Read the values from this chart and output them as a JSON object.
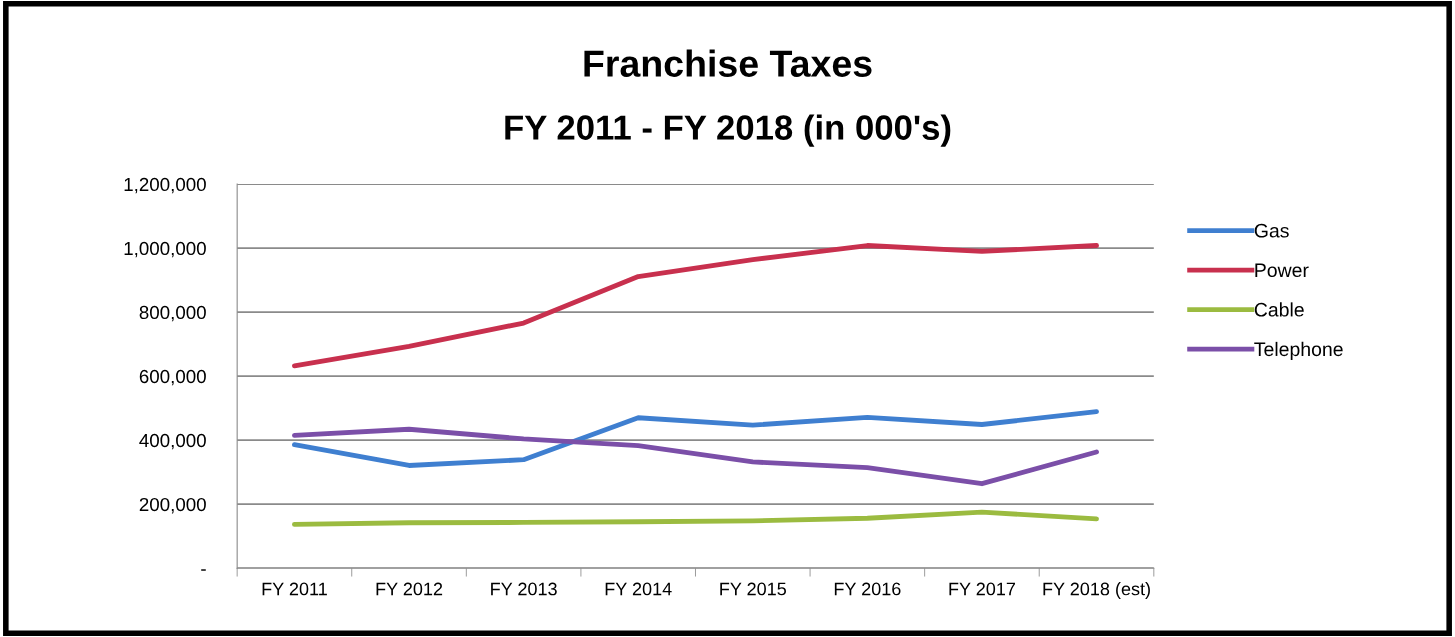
{
  "chart_data": {
    "type": "line",
    "title": "Franchise Taxes",
    "subtitle": "FY 2011 - FY 2018 (in 000's)",
    "categories": [
      "FY 2011",
      "FY 2012",
      "FY 2013",
      "FY 2014",
      "FY 2015",
      "FY 2016",
      "FY 2017",
      "FY 2018 (est)"
    ],
    "series": [
      {
        "name": "Gas",
        "color": "#3f7fd0",
        "values": [
          386000,
          321000,
          339000,
          470000,
          447000,
          471000,
          449000,
          489000
        ]
      },
      {
        "name": "Power",
        "color": "#c8304e",
        "values": [
          632000,
          693000,
          766000,
          911000,
          964000,
          1008000,
          990000,
          1008000
        ]
      },
      {
        "name": "Cable",
        "color": "#9bbb40",
        "values": [
          137000,
          142000,
          143000,
          145000,
          148000,
          156000,
          175000,
          154000
        ]
      },
      {
        "name": "Telephone",
        "color": "#7b4fa8",
        "values": [
          415000,
          434000,
          404000,
          383000,
          332000,
          314000,
          264000,
          363000
        ]
      }
    ],
    "ylim": [
      0,
      1200000
    ],
    "yticks": [
      {
        "value": 0,
        "label": "-"
      },
      {
        "value": 200000,
        "label": "200,000"
      },
      {
        "value": 400000,
        "label": "400,000"
      },
      {
        "value": 600000,
        "label": "600,000"
      },
      {
        "value": 800000,
        "label": "800,000"
      },
      {
        "value": 1000000,
        "label": "1,000,000"
      },
      {
        "value": 1200000,
        "label": "1,200,000"
      }
    ],
    "grid": "y",
    "legend": "right",
    "marker": "none",
    "line_style": "solid"
  }
}
